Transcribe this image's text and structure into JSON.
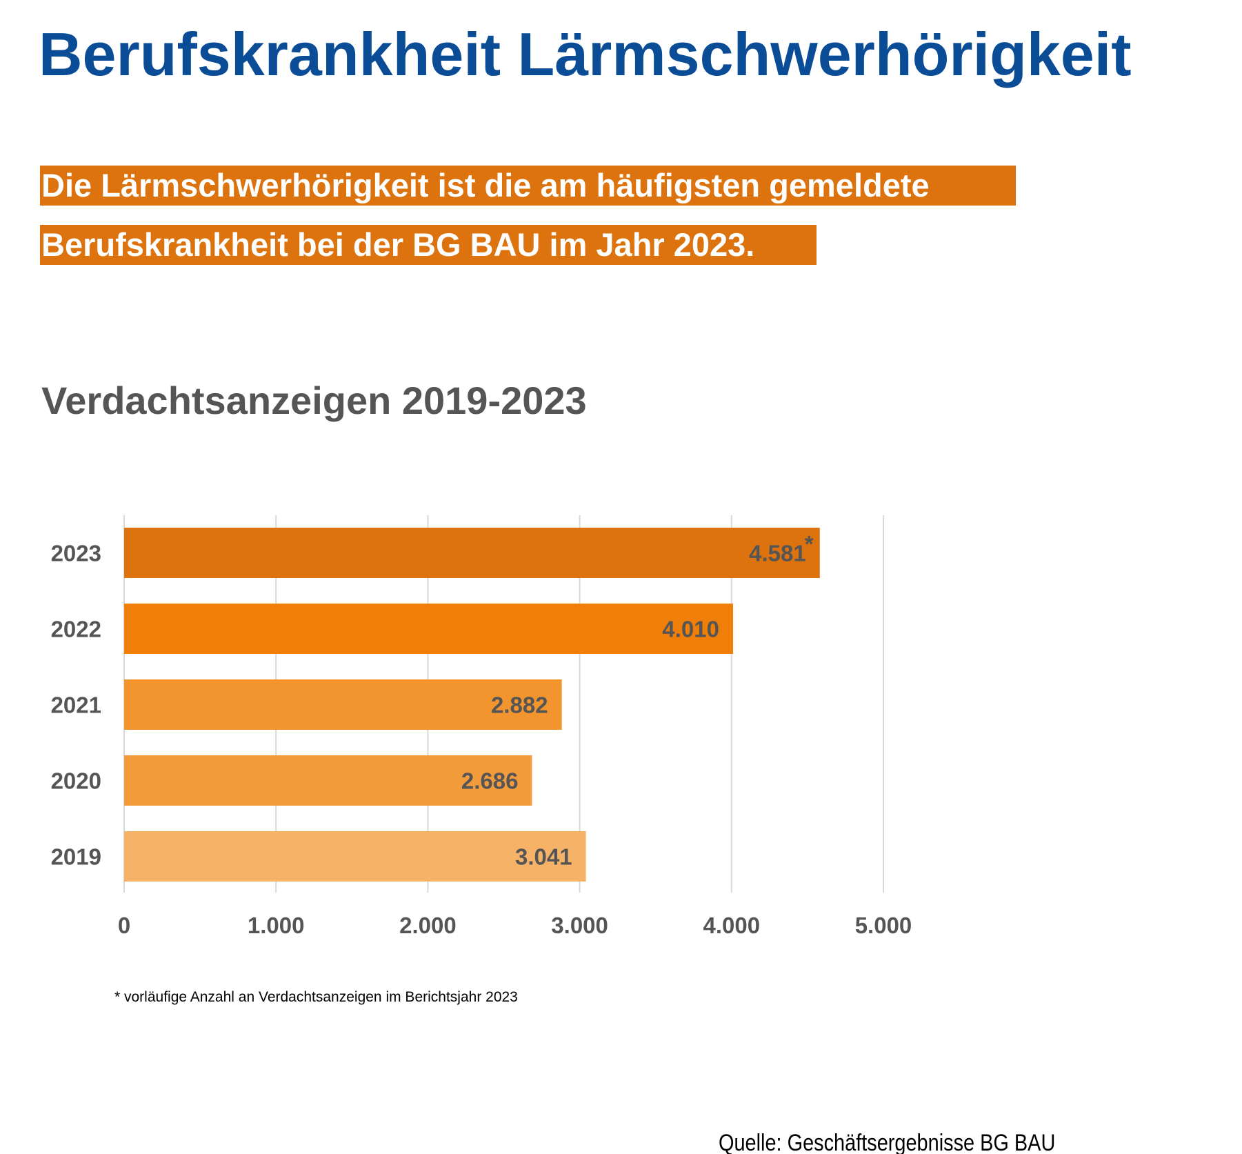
{
  "title": "Berufskrankheit Lärmschwerhörigkeit",
  "highlight": {
    "line1": "Die Lärmschwerhörigkeit ist die am häufigsten gemeldete",
    "line2": "Berufskrankheit bei der BG BAU im Jahr 2023."
  },
  "footnote": "* vorläufige Anzahl an Verdachtsanzeigen im Berichtsjahr 2023",
  "source": "Quelle: Geschäftsergebnisse BG BAU",
  "colors": {
    "title": "#0a4c96",
    "highlight": "#dc730e",
    "text": "#555555"
  },
  "chart_data": {
    "type": "bar",
    "orientation": "horizontal",
    "title": "Verdachtsanzeigen 2019-2023",
    "categories": [
      "2023",
      "2022",
      "2021",
      "2020",
      "2019"
    ],
    "values": [
      4581,
      4010,
      2882,
      2686,
      3041
    ],
    "data_labels": [
      "4.581",
      "4.010",
      "2.882",
      "2.686",
      "3.041"
    ],
    "annotations": {
      "2023": "*"
    },
    "bar_colors": [
      "#dc730e",
      "#ef7f09",
      "#f2952f",
      "#f39c3c",
      "#f6b367"
    ],
    "xlim": [
      0,
      5000
    ],
    "xticks": [
      0,
      1000,
      2000,
      3000,
      4000,
      5000
    ],
    "xtick_labels": [
      "0",
      "1.000",
      "2.000",
      "3.000",
      "4.000",
      "5.000"
    ],
    "grid": "vertical",
    "legend": "none"
  }
}
